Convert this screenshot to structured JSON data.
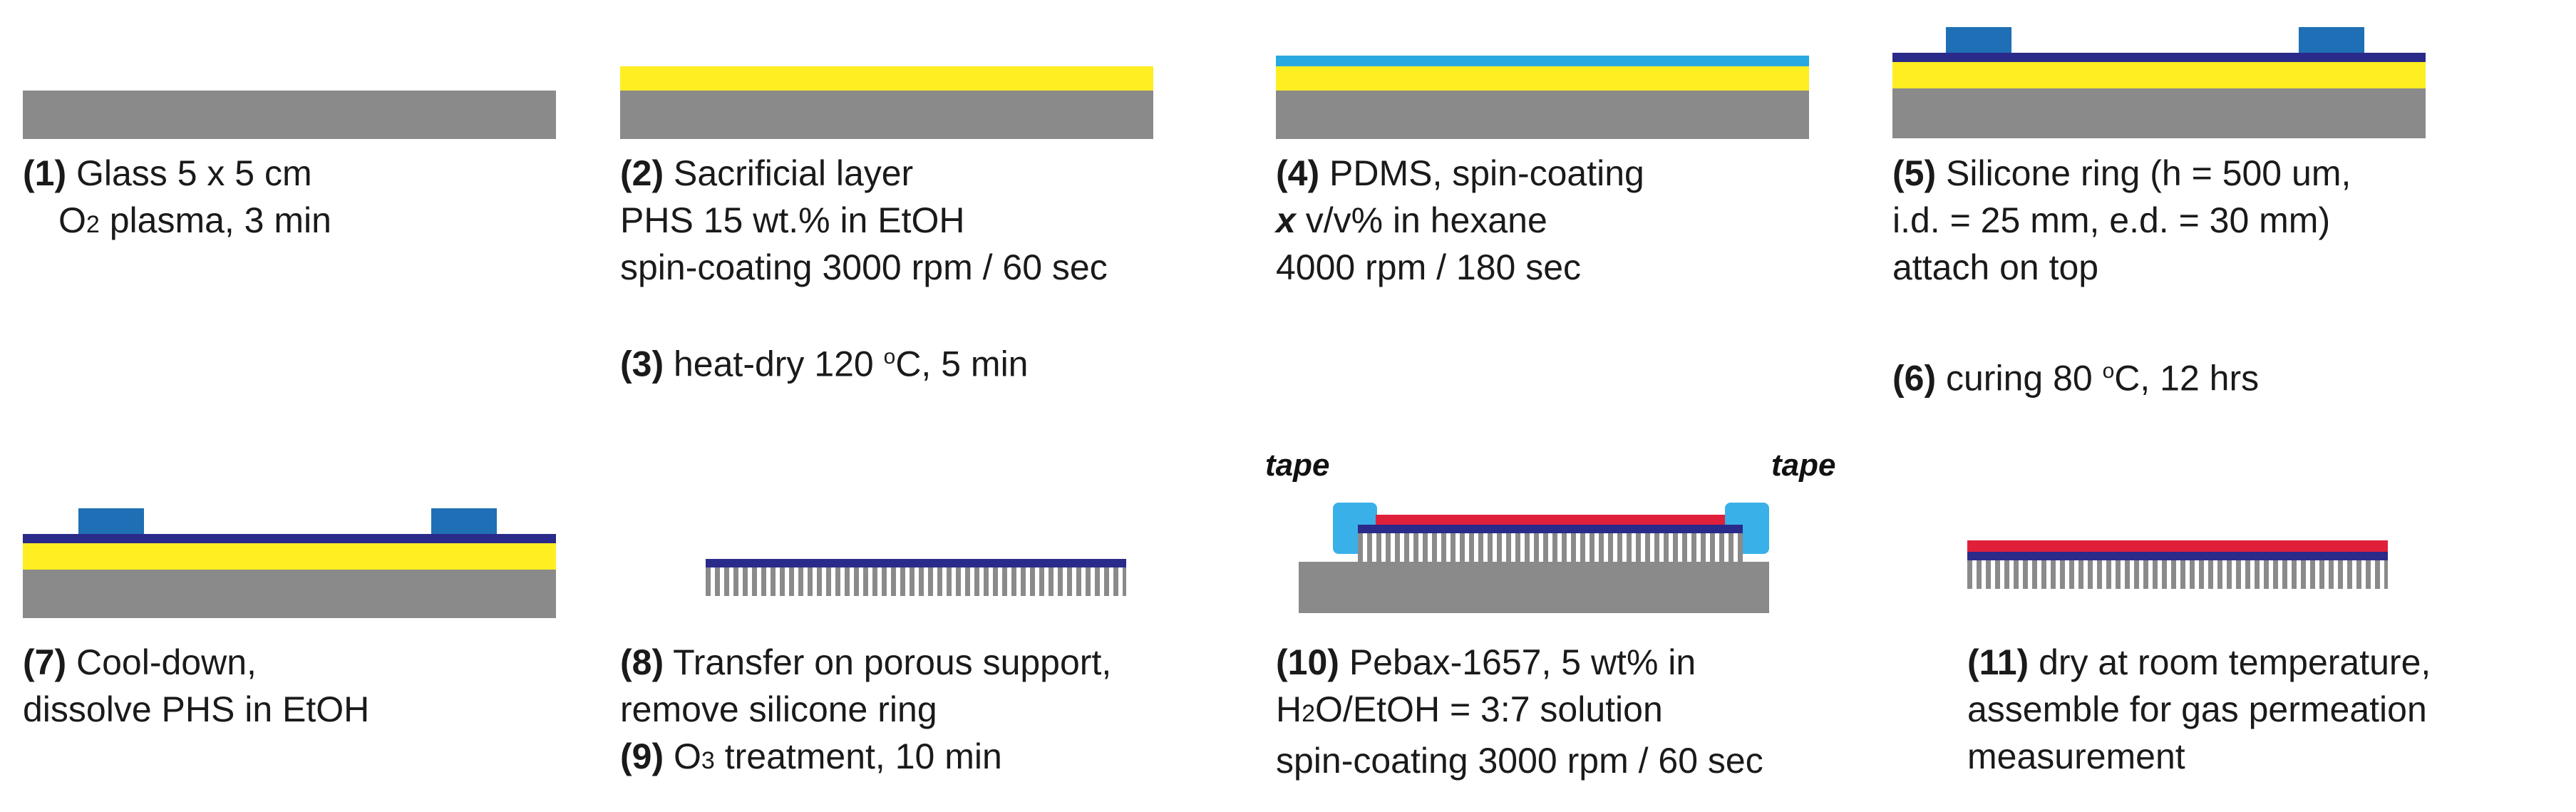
{
  "colors": {
    "glass": "#8a8a8a",
    "sacrificial": "#ffee22",
    "pdms": "#2aa8e0",
    "pdms_dark": "#2a2a8a",
    "silicone_ring": "#1e6fb5",
    "pebax": "#e0203a",
    "tape": "#3ab0e8",
    "porous": "#8a8a8a"
  },
  "steps": {
    "s1": {
      "num": "(1)",
      "line1": " Glass 5 x 5 cm",
      "line2a": "O",
      "line2sub": "2",
      "line2b": " plasma, 3 min"
    },
    "s2": {
      "num": "(2)",
      "line1": " Sacrificial layer",
      "line2": "PHS 15 wt.%  in EtOH",
      "line3": "spin-coating 3000 rpm / 60 sec"
    },
    "s3": {
      "num": "(3)",
      "text_a": " heat-dry 120 ",
      "deg": "o",
      "text_b": "C, 5 min"
    },
    "s4": {
      "num": "(4)",
      "line1": " PDMS, spin-coating",
      "x": "x",
      "line2": " v/v% in hexane",
      "line3": "4000 rpm / 180 sec"
    },
    "s5": {
      "num": "(5)",
      "line1": " Silicone ring (h = 500 um,",
      "line2": "i.d. = 25 mm, e.d. = 30 mm)",
      "line3": "attach on top"
    },
    "s6": {
      "num": "(6)",
      "text_a": " curing 80 ",
      "deg": "o",
      "text_b": "C, 12 hrs"
    },
    "s7": {
      "num": "(7)",
      "line1": " Cool-down,",
      "line2": "dissolve PHS in EtOH"
    },
    "s8": {
      "num": "(8)",
      "line1": " Transfer on porous support,",
      "line2": "remove silicone ring"
    },
    "s9": {
      "num": "(9)",
      "text_a": " O",
      "sub": "3",
      "text_b": " treatment, 10 min"
    },
    "s10": {
      "num": "(10)",
      "line1": " Pebax-1657, 5 wt% in",
      "line2a": "H",
      "sub1": "2",
      "line2b": "O/EtOH = 3:7 solution",
      "line3": "spin-coating 3000 rpm / 60 sec"
    },
    "s11": {
      "num": "(11)",
      "line1": " dry at room temperature,",
      "line2": "assemble for gas permeation",
      "line3": "measurement"
    }
  },
  "tape_labels": {
    "left": "tape",
    "right": "tape"
  }
}
